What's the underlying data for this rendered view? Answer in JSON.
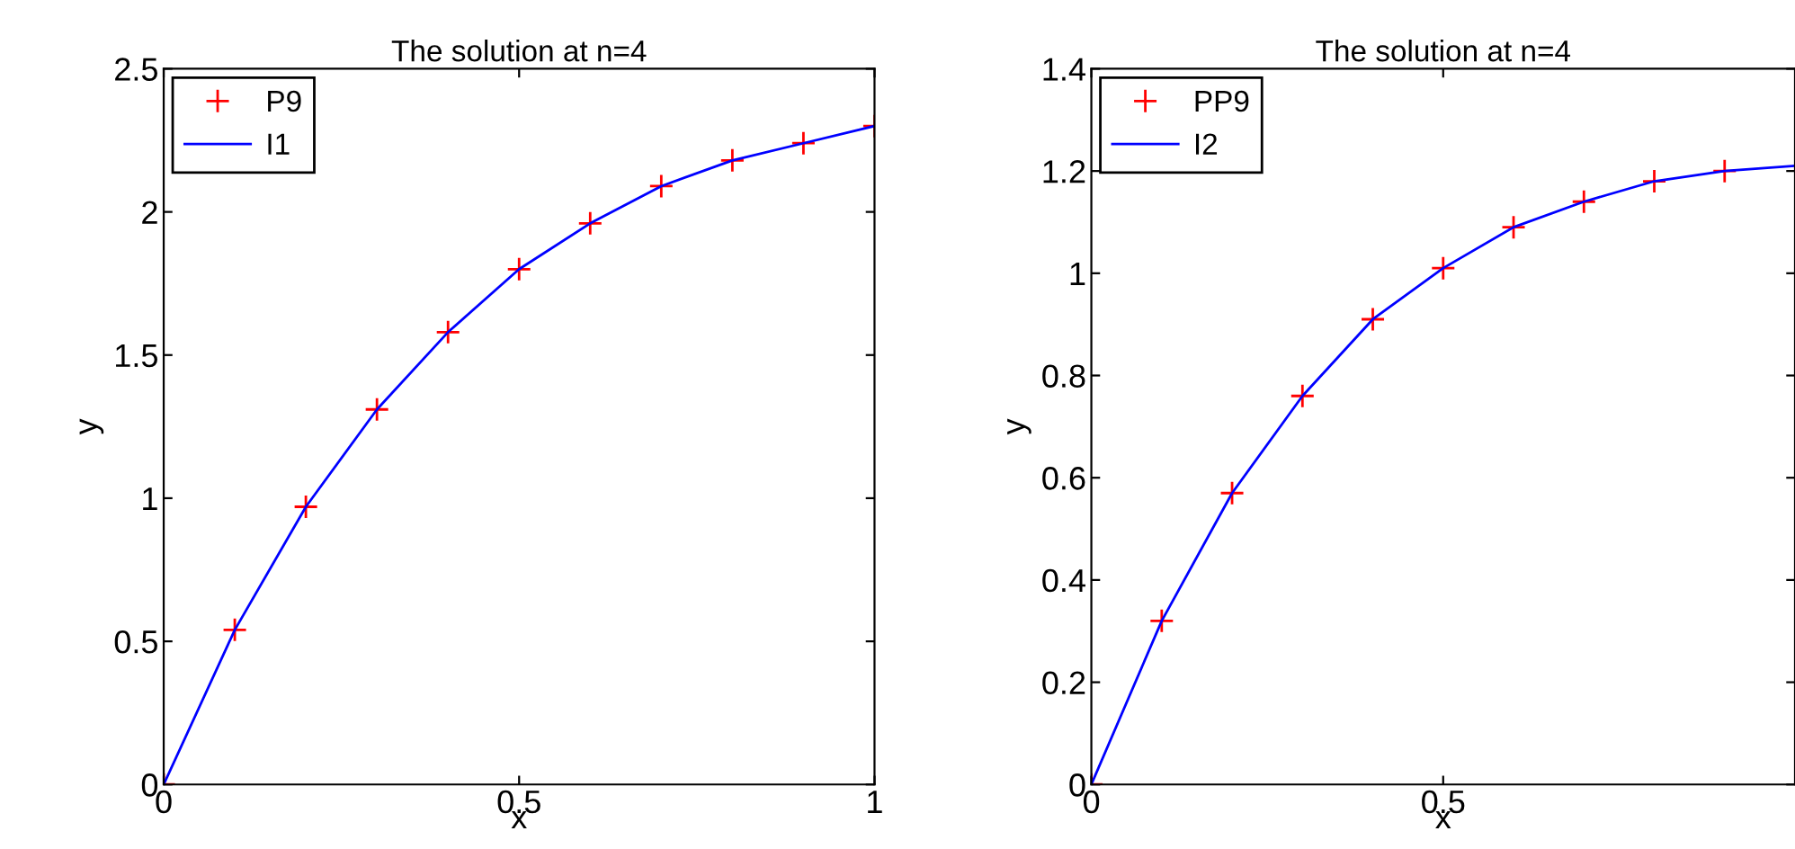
{
  "chart_data": [
    {
      "type": "line",
      "title": "The solution at n=4",
      "xlabel": "x",
      "ylabel": "y",
      "xlim": [
        0,
        1
      ],
      "ylim": [
        0,
        2.5
      ],
      "xticks": [
        0,
        0.5,
        1
      ],
      "yticks": [
        0,
        0.5,
        1,
        1.5,
        2,
        2.5
      ],
      "grid": false,
      "legend": "top left",
      "x": [
        0,
        0.1,
        0.2,
        0.3,
        0.4,
        0.5,
        0.6,
        0.7,
        0.8,
        0.9,
        1.0
      ],
      "series": [
        {
          "name": "P9",
          "type": "scatter",
          "marker": "cross",
          "color": "#ff0000",
          "values": [
            0,
            0.54,
            0.97,
            1.31,
            1.58,
            1.8,
            1.96,
            2.09,
            2.18,
            2.24,
            2.3
          ]
        },
        {
          "name": "I1",
          "type": "line",
          "marker": "none",
          "color": "#0000ff",
          "values": [
            0,
            0.54,
            0.97,
            1.31,
            1.58,
            1.8,
            1.96,
            2.09,
            2.18,
            2.24,
            2.3
          ]
        }
      ]
    },
    {
      "type": "line",
      "title": "The solution at n=4",
      "xlabel": "x",
      "ylabel": "y",
      "xlim": [
        0,
        1
      ],
      "ylim": [
        0,
        1.4
      ],
      "xticks": [
        0,
        0.5
      ],
      "yticks": [
        0,
        0.2,
        0.4,
        0.6,
        0.8,
        1,
        1.2,
        1.4
      ],
      "grid": false,
      "legend": "top left",
      "x": [
        0,
        0.1,
        0.2,
        0.3,
        0.4,
        0.5,
        0.6,
        0.7,
        0.8,
        0.9,
        1.0
      ],
      "series": [
        {
          "name": "PP9",
          "type": "scatter",
          "marker": "cross",
          "color": "#ff0000",
          "values": [
            0,
            0.32,
            0.57,
            0.76,
            0.91,
            1.01,
            1.09,
            1.14,
            1.18,
            1.2,
            null
          ]
        },
        {
          "name": "I2",
          "type": "line",
          "marker": "none",
          "color": "#0000ff",
          "values": [
            0,
            0.32,
            0.57,
            0.76,
            0.91,
            1.01,
            1.09,
            1.14,
            1.18,
            1.2,
            1.21
          ]
        }
      ]
    }
  ]
}
